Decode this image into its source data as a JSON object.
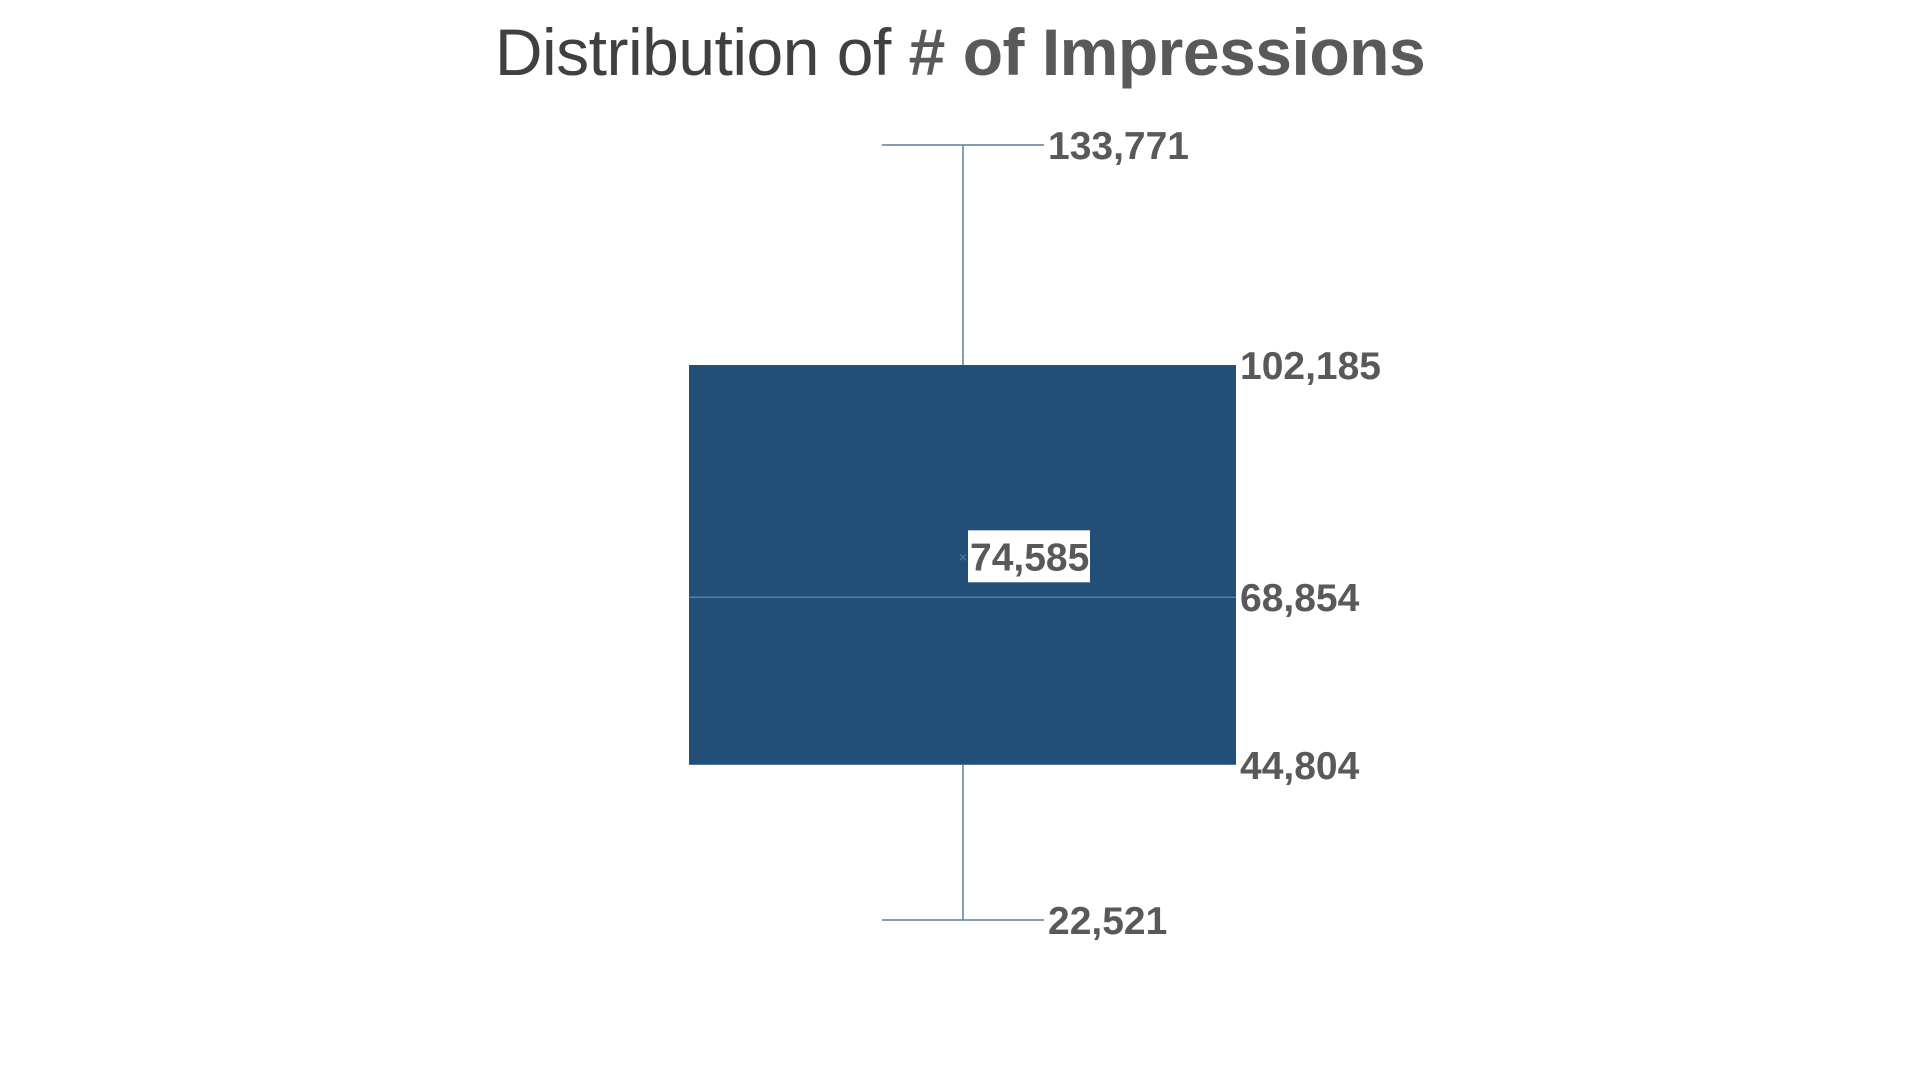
{
  "chart_data": {
    "type": "box",
    "title": "Distribution of",
    "title_emphasis": "# of Impressions",
    "series": [
      {
        "values": {
          "max": 133771,
          "q3": 102185,
          "median": 68854,
          "mean": 74585,
          "q1": 44804,
          "min": 22521
        },
        "labels": {
          "max": "133,771",
          "q3": "102,185",
          "median": "68,854",
          "mean": "74,585",
          "q1": "44,804",
          "min": "22,521"
        }
      }
    ],
    "legend": "none",
    "grid": false,
    "axes_visible": false
  },
  "colors": {
    "box_fill": "#224f78",
    "whisker": "#5b7fa6",
    "median_line": "#5f86b0",
    "label_text": "#595959",
    "title_text": "#404040",
    "mean_label_bg": "#ffffff"
  }
}
